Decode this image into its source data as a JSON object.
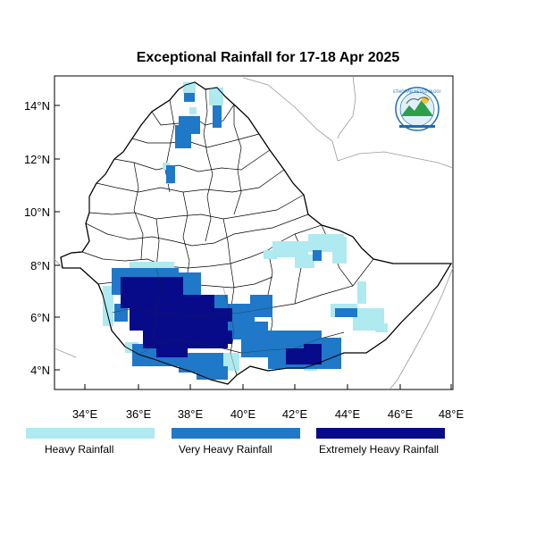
{
  "title": "Exceptional Rainfall for 17-18 Apr 2025",
  "x_axis": {
    "ticks": [
      "34°E",
      "36°E",
      "38°E",
      "40°E",
      "42°E",
      "44°E",
      "46°E",
      "48°E"
    ]
  },
  "y_axis": {
    "ticks": [
      "14°N",
      "12°N",
      "10°N",
      "8°N",
      "6°N",
      "4°N"
    ]
  },
  "legend": [
    {
      "label": "Heavy Rainfall",
      "color": "#aeeaef"
    },
    {
      "label": "Very Heavy Rainfall",
      "color": "#1f78c8"
    },
    {
      "label": "Extremely Heavy Rainfall",
      "color": "#070b8a"
    }
  ],
  "logo_text": "Ethiopian Meteorology Institute"
}
